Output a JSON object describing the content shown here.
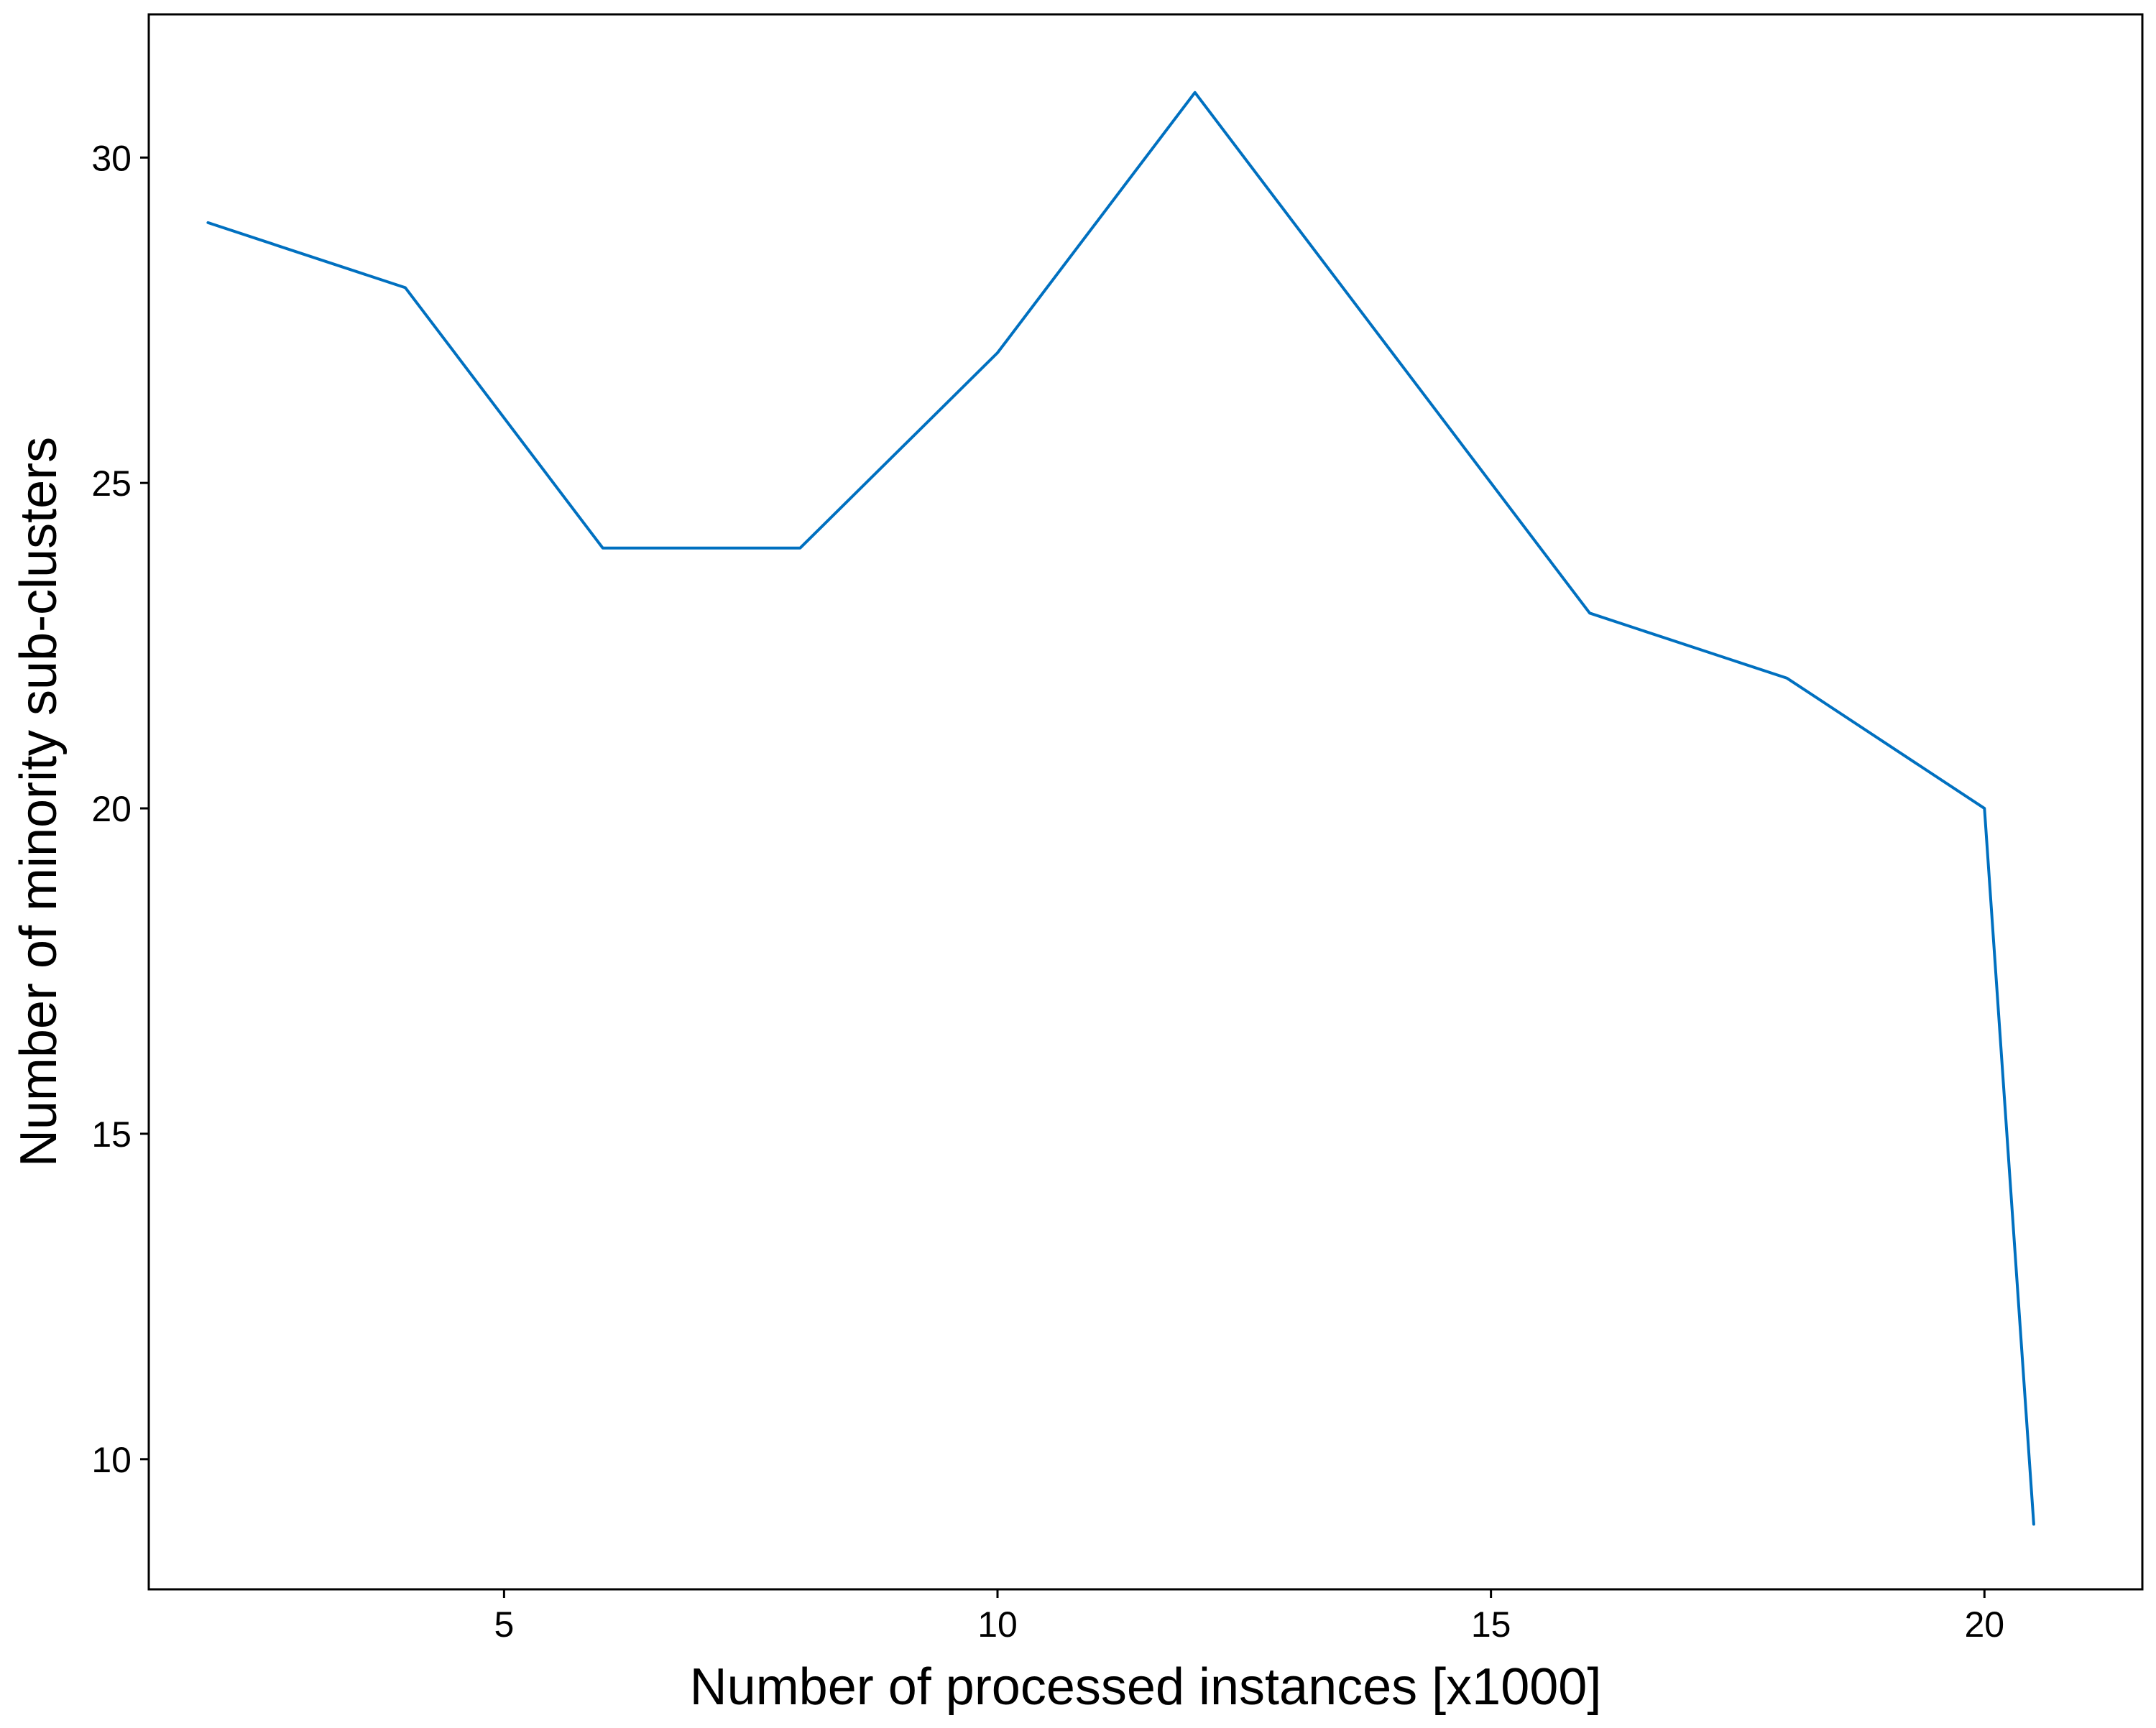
{
  "chart_data": {
    "type": "line",
    "title": "",
    "xlabel": "Number of processed instances [x1000]",
    "ylabel": "Number of minority sub-clusters",
    "xlim": [
      1.4,
      21.6
    ],
    "ylim": [
      8.0,
      32.2
    ],
    "x_ticks": [
      5,
      10,
      15,
      20
    ],
    "y_ticks": [
      10,
      15,
      20,
      25,
      30
    ],
    "x_tick_labels": [
      "5",
      "10",
      "15",
      "20"
    ],
    "y_tick_labels": [
      "10",
      "15",
      "20",
      "25",
      "30"
    ],
    "grid": false,
    "legend": "none",
    "series": [
      {
        "color": "#0070c0",
        "x": [
          2,
          4,
          6,
          8,
          10,
          12,
          14,
          16,
          18,
          20,
          20.5
        ],
        "y": [
          29,
          28,
          24,
          24,
          27,
          31,
          27,
          23,
          22,
          20,
          9
        ]
      }
    ]
  }
}
